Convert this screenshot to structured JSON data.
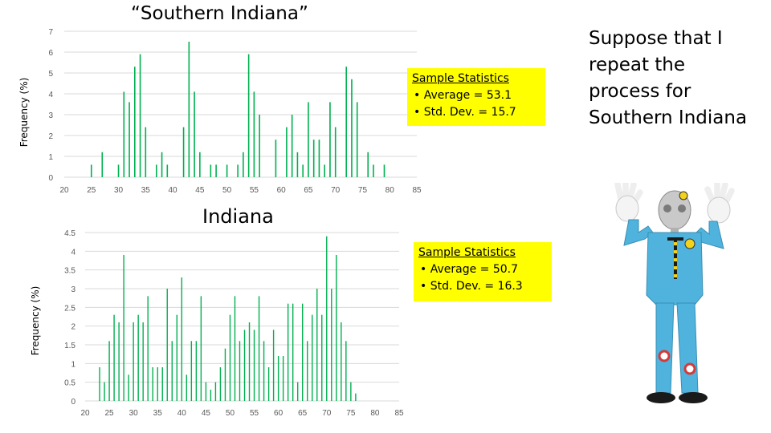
{
  "southern_title": "“Southern Indiana”",
  "indiana_title": "Indiana",
  "side_text": "Suppose that I repeat the process for Southern Indiana",
  "stats_southern": {
    "title": "Sample Statistics",
    "items": [
      "• Average = 53.1",
      "• Std. Dev. = 15.7"
    ]
  },
  "stats_indiana": {
    "title": "Sample Statistics",
    "items": [
      "• Average = 50.7",
      "• Std. Dev. = 16.3"
    ]
  },
  "colors": {
    "bar": "#00b050",
    "stats_bg": "#ffff00",
    "gridline": "#d9d9d9",
    "figure_suit": "#4fb3dd"
  },
  "chart_data": [
    {
      "type": "bar",
      "title": "“Southern Indiana”",
      "xlabel": "",
      "ylabel": "Frequency (%)",
      "xlim": [
        20,
        85
      ],
      "ylim": [
        0,
        7
      ],
      "x_ticks": [
        20,
        25,
        30,
        35,
        40,
        45,
        50,
        55,
        60,
        65,
        70,
        75,
        80,
        85
      ],
      "y_ticks": [
        0,
        1,
        2,
        3,
        4,
        5,
        6,
        7
      ],
      "grid": true,
      "x": [
        25,
        27,
        30,
        31,
        32,
        33,
        34,
        35,
        37,
        38,
        39,
        42,
        43,
        44,
        45,
        47,
        48,
        50,
        52,
        53,
        54,
        55,
        56,
        59,
        61,
        62,
        63,
        64,
        65,
        66,
        67,
        68,
        69,
        70,
        72,
        73,
        74,
        76,
        77,
        79
      ],
      "values": [
        0.6,
        1.2,
        0.6,
        4.1,
        3.6,
        5.3,
        5.9,
        2.4,
        0.6,
        1.2,
        0.6,
        2.4,
        6.5,
        4.1,
        1.2,
        0.6,
        0.6,
        0.6,
        0.6,
        1.2,
        5.9,
        4.1,
        3.0,
        1.8,
        2.4,
        3.0,
        1.2,
        0.6,
        3.6,
        1.8,
        1.8,
        0.6,
        3.6,
        2.4,
        5.3,
        4.7,
        3.6,
        1.2,
        0.6,
        0.6
      ]
    },
    {
      "type": "bar",
      "title": "Indiana",
      "xlabel": "",
      "ylabel": "Frequency (%)",
      "xlim": [
        20,
        85
      ],
      "ylim": [
        0,
        4.5
      ],
      "x_ticks": [
        20,
        25,
        30,
        35,
        40,
        45,
        50,
        55,
        60,
        65,
        70,
        75,
        80,
        85
      ],
      "y_ticks": [
        0,
        0.5,
        1,
        1.5,
        2,
        2.5,
        3,
        3.5,
        4,
        4.5
      ],
      "grid": true,
      "x": [
        23,
        24,
        25,
        26,
        27,
        28,
        29,
        30,
        31,
        32,
        33,
        34,
        35,
        36,
        37,
        38,
        39,
        40,
        41,
        42,
        43,
        44,
        45,
        46,
        47,
        48,
        49,
        50,
        51,
        52,
        53,
        54,
        55,
        56,
        57,
        58,
        59,
        60,
        61,
        62,
        63,
        64,
        65,
        66,
        67,
        68,
        69,
        70,
        71,
        72,
        73,
        74,
        75,
        76
      ],
      "values": [
        0.9,
        0.5,
        1.6,
        2.3,
        2.1,
        3.9,
        0.7,
        2.1,
        2.3,
        2.1,
        2.8,
        0.9,
        0.9,
        0.9,
        3.0,
        1.6,
        2.3,
        3.3,
        0.7,
        1.6,
        1.6,
        2.8,
        0.5,
        0.3,
        0.5,
        0.9,
        1.4,
        2.3,
        2.8,
        1.6,
        1.9,
        2.1,
        1.9,
        2.8,
        1.6,
        0.9,
        1.9,
        1.2,
        1.2,
        2.6,
        2.6,
        0.5,
        2.6,
        1.6,
        2.3,
        3.0,
        2.3,
        4.4,
        3.0,
        3.9,
        2.1,
        1.6,
        0.5,
        0.2
      ]
    }
  ]
}
